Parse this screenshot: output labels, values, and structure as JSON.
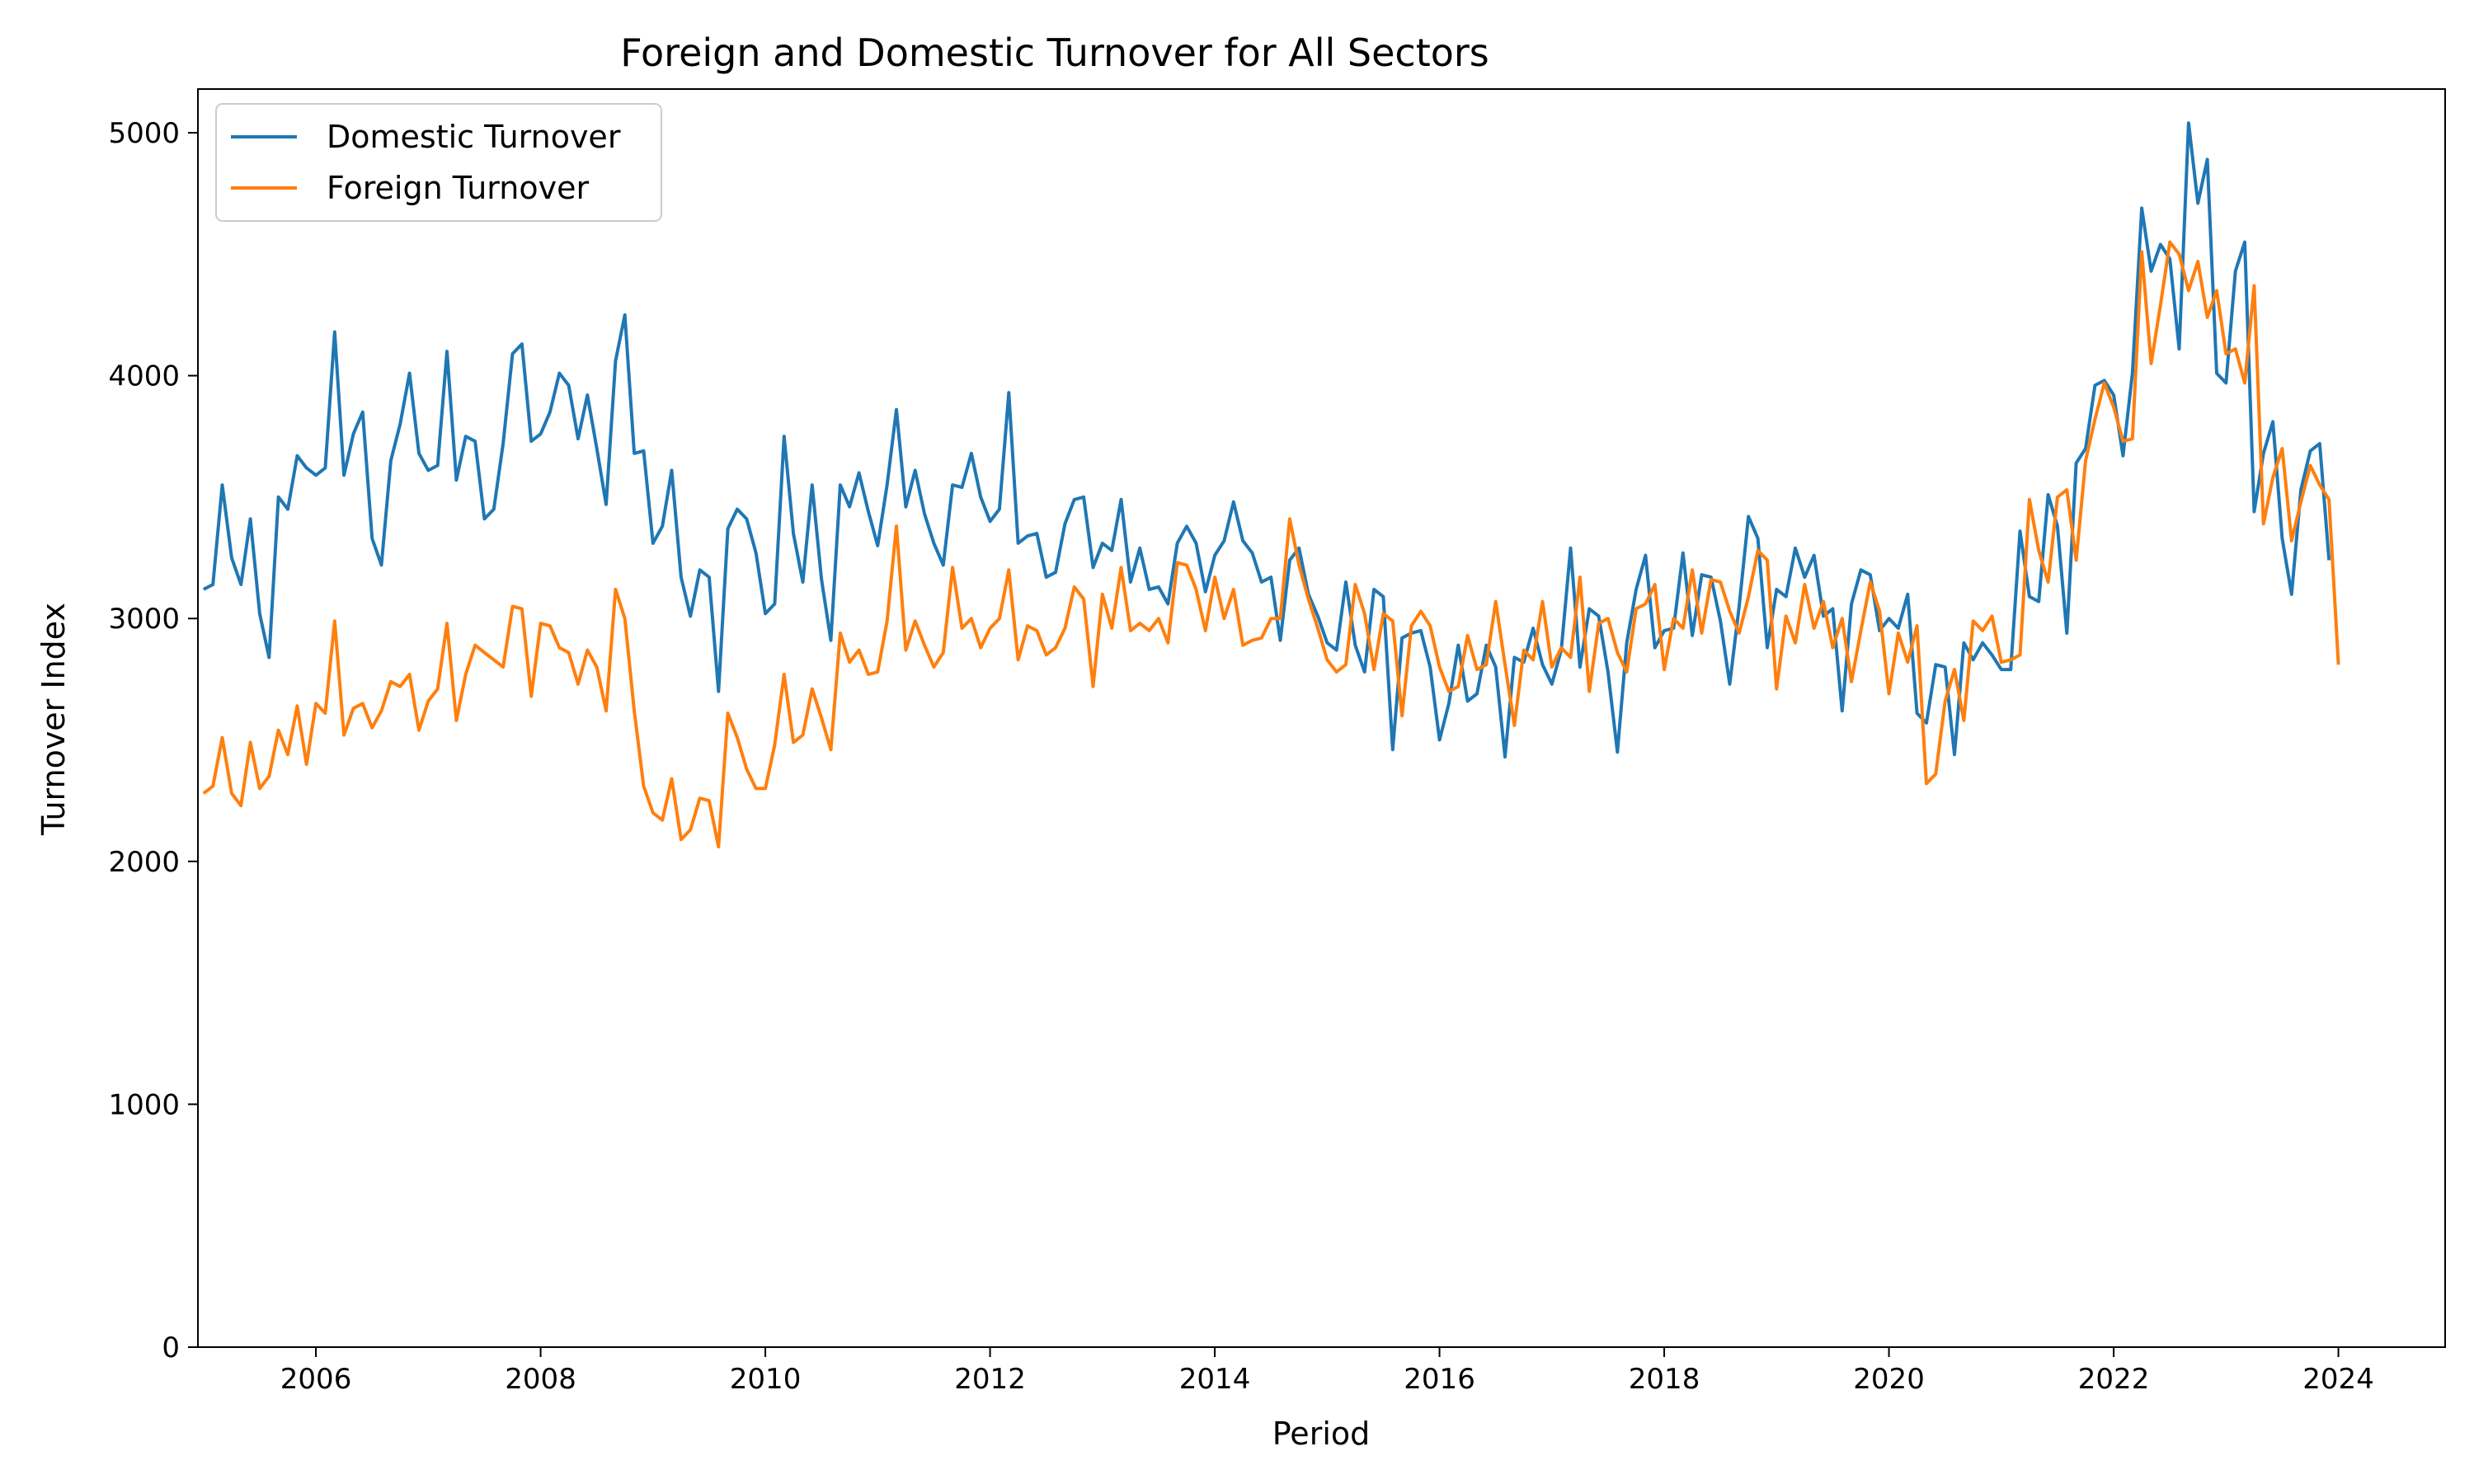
{
  "chart_data": {
    "type": "line",
    "title": "Foreign and Domestic Turnover for All Sectors",
    "xlabel": "Period",
    "ylabel": "Turnover Index",
    "xlim": [
      2004.95,
      2024.95
    ],
    "ylim": [
      0,
      5180
    ],
    "xticks": [
      2006,
      2008,
      2010,
      2012,
      2014,
      2016,
      2018,
      2020,
      2022,
      2024
    ],
    "yticks": [
      0,
      1000,
      2000,
      3000,
      4000,
      5000
    ],
    "grid": false,
    "legend_position": "upper-left",
    "x_start": 2005.0,
    "x_step_months": 1,
    "series": [
      {
        "name": "Domestic Turnover",
        "color": "#1f77b4",
        "values": [
          3120,
          3140,
          3550,
          3250,
          3140,
          3410,
          3020,
          2840,
          3500,
          3450,
          3670,
          3620,
          3590,
          3620,
          4180,
          3590,
          3760,
          3850,
          3330,
          3220,
          3650,
          3800,
          4010,
          3680,
          3610,
          3630,
          4100,
          3570,
          3750,
          3730,
          3410,
          3450,
          3720,
          4090,
          4130,
          3730,
          3760,
          3850,
          4010,
          3960,
          3740,
          3920,
          3700,
          3470,
          4060,
          4250,
          3680,
          3690,
          3310,
          3380,
          3610,
          3170,
          3010,
          3200,
          3170,
          2700,
          3370,
          3450,
          3410,
          3270,
          3020,
          3060,
          3750,
          3350,
          3150,
          3550,
          3160,
          2910,
          3550,
          3460,
          3600,
          3440,
          3300,
          3550,
          3860,
          3460,
          3610,
          3430,
          3310,
          3220,
          3550,
          3540,
          3680,
          3500,
          3400,
          3450,
          3930,
          3310,
          3340,
          3350,
          3170,
          3190,
          3390,
          3490,
          3500,
          3210,
          3310,
          3280,
          3490,
          3150,
          3290,
          3120,
          3130,
          3060,
          3310,
          3380,
          3310,
          3110,
          3260,
          3320,
          3480,
          3320,
          3270,
          3150,
          3170,
          2910,
          3240,
          3290,
          3100,
          3010,
          2900,
          2870,
          3150,
          2890,
          2780,
          3120,
          3090,
          2460,
          2920,
          2940,
          2950,
          2800,
          2500,
          2650,
          2890,
          2660,
          2690,
          2890,
          2800,
          2430,
          2840,
          2820,
          2960,
          2810,
          2730,
          2870,
          3290,
          2800,
          3040,
          3010,
          2780,
          2450,
          2900,
          3120,
          3260,
          2880,
          2950,
          2960,
          3270,
          2930,
          3180,
          3170,
          2990,
          2730,
          3050,
          3420,
          3330,
          2880,
          3120,
          3090,
          3290,
          3170,
          3260,
          3010,
          3040,
          2620,
          3060,
          3200,
          3180,
          2950,
          3000,
          2960,
          3100,
          2610,
          2570,
          2810,
          2800,
          2440,
          2900,
          2830,
          2900,
          2850,
          2790,
          2790,
          3360,
          3090,
          3070,
          3510,
          3380,
          2940,
          3640,
          3700,
          3960,
          3980,
          3920,
          3670,
          4010,
          4690,
          4430,
          4540,
          4480,
          4110,
          5040,
          4710,
          4890,
          4010,
          3970,
          4430,
          4550,
          3440,
          3680,
          3810,
          3330,
          3100,
          3530,
          3690,
          3720,
          3240
        ]
      },
      {
        "name": "Foreign Turnover",
        "color": "#ff7f0e",
        "values": [
          2280,
          2310,
          2510,
          2280,
          2230,
          2490,
          2300,
          2350,
          2540,
          2440,
          2640,
          2400,
          2650,
          2610,
          2990,
          2520,
          2630,
          2650,
          2550,
          2620,
          2740,
          2720,
          2770,
          2540,
          2660,
          2710,
          2980,
          2580,
          2770,
          2890,
          2860,
          2830,
          2800,
          3050,
          3040,
          2680,
          2980,
          2970,
          2880,
          2860,
          2730,
          2870,
          2800,
          2620,
          3120,
          3000,
          2620,
          2310,
          2200,
          2170,
          2340,
          2090,
          2130,
          2260,
          2250,
          2060,
          2610,
          2510,
          2380,
          2300,
          2300,
          2480,
          2770,
          2490,
          2520,
          2710,
          2590,
          2460,
          2940,
          2820,
          2870,
          2770,
          2780,
          2990,
          3380,
          2870,
          2990,
          2890,
          2800,
          2860,
          3210,
          2960,
          3000,
          2880,
          2960,
          3000,
          3200,
          2830,
          2970,
          2950,
          2850,
          2880,
          2960,
          3130,
          3080,
          2720,
          3100,
          2960,
          3210,
          2950,
          2980,
          2950,
          3000,
          2900,
          3230,
          3220,
          3120,
          2950,
          3170,
          3000,
          3120,
          2890,
          2910,
          2920,
          3000,
          3000,
          3410,
          3220,
          3080,
          2960,
          2830,
          2780,
          2810,
          3140,
          3020,
          2790,
          3020,
          2990,
          2600,
          2970,
          3030,
          2970,
          2800,
          2700,
          2720,
          2930,
          2790,
          2810,
          3070,
          2810,
          2560,
          2870,
          2830,
          3070,
          2800,
          2880,
          2840,
          3170,
          2700,
          2980,
          3000,
          2860,
          2780,
          3040,
          3060,
          3140,
          2790,
          3000,
          2960,
          3200,
          2940,
          3160,
          3150,
          3030,
          2940,
          3090,
          3280,
          3240,
          2710,
          3010,
          2900,
          3140,
          2960,
          3070,
          2880,
          3000,
          2740,
          2950,
          3150,
          3030,
          2690,
          2940,
          2820,
          2970,
          2320,
          2360,
          2660,
          2790,
          2580,
          2990,
          2950,
          3010,
          2820,
          2830,
          2850,
          3490,
          3280,
          3150,
          3500,
          3530,
          3240,
          3650,
          3820,
          3970,
          3870,
          3730,
          3740,
          4510,
          4050,
          4290,
          4550,
          4500,
          4350,
          4470,
          4240,
          4350,
          4090,
          4110,
          3970,
          4370,
          3390,
          3580,
          3700,
          3320,
          3480,
          3630,
          3550,
          3490,
          2810
        ]
      }
    ]
  }
}
